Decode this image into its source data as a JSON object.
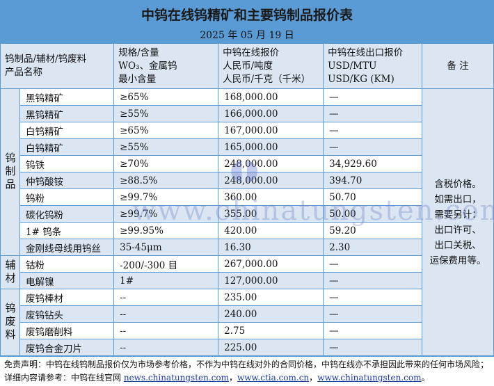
{
  "title": "中钨在线钨精矿和主要钨制品报价表",
  "date": "2025 年 05 月 19 日",
  "headers": {
    "name": [
      "钨制品/辅材/钨废料",
      "产品名称"
    ],
    "spec": [
      "规格/含量",
      "WO₃、金属钨",
      "最小含量"
    ],
    "price": [
      "中钨在线报价",
      "人民币/吨度",
      "人民币/千克（千米）"
    ],
    "export": [
      "中钨在线出口报价",
      "USD/MTU",
      "USD/KG (KM)"
    ],
    "remark": "备 注"
  },
  "categories": [
    "钨制品",
    "辅材",
    "钨废料"
  ],
  "rows": [
    {
      "name": "黑钨精矿",
      "spec": "≥65%",
      "price": "168,000.00",
      "export": "—"
    },
    {
      "name": "黑钨精矿",
      "spec": "≥55%",
      "price": "166,000.00",
      "export": "—"
    },
    {
      "name": "白钨精矿",
      "spec": "≥65%",
      "price": "167,000.00",
      "export": "—"
    },
    {
      "name": "白钨精矿",
      "spec": "≥55%",
      "price": "165,000.00",
      "export": "—"
    },
    {
      "name": "钨铁",
      "spec": "≥70%",
      "price": "248,000.00",
      "export": "34,929.60"
    },
    {
      "name": "仲钨酸铵",
      "spec": "≥88.5%",
      "price": "248,000.00",
      "export": "394.70"
    },
    {
      "name": "钨粉",
      "spec": "≥99.7%",
      "price": "360.00",
      "export": "50.70"
    },
    {
      "name": "碳化钨粉",
      "spec": "≥99.7%",
      "price": "355.00",
      "export": "50.00"
    },
    {
      "name": "1# 钨条",
      "spec": "≥99.95%",
      "price": "420.00",
      "export": "59.20"
    },
    {
      "name": "金刚线母线用钨丝",
      "spec": "35-45μm",
      "price": "16.30",
      "export": "2.30"
    },
    {
      "name": "钴粉",
      "spec": "-200/-300 目",
      "price": "267,000.00",
      "export": "—"
    },
    {
      "name": "电解镍",
      "spec": "1#",
      "price": "127,000.00",
      "export": "—"
    },
    {
      "name": "废钨棒材",
      "spec": "--",
      "price": "235.00",
      "export": "—"
    },
    {
      "name": "废钨钻头",
      "spec": "--",
      "price": "240.00",
      "export": "—"
    },
    {
      "name": "废钨磨削料",
      "spec": "--",
      "price": "2.75",
      "export": "—"
    },
    {
      "name": "废钨合金刀片",
      "spec": "--",
      "price": "225.00",
      "export": "—"
    }
  ],
  "remark_lines": [
    "含税价格。",
    "如需出口，",
    "需要另计：",
    "出口许可、",
    "出口关税、",
    "运保费用等。"
  ],
  "watermark": "www.chinatungsten.com",
  "logo_text": "CTOMS",
  "footer": {
    "disclaimer": "免责声明：中钨在线钨制品报价仅为市场参考价格，不作为中钨在线对外的合同价格，中钨在线亦不承担因此带来的任何市场风险；",
    "ref_label": "详细内容请参考：中钨在线官网",
    "links": [
      "news.chinatungsten.com",
      "www.ctia.com.cn",
      "www.chinatungsten.com"
    ]
  },
  "colors": {
    "header_bg": "#5b9bd5",
    "alt_row": "#dce6f2",
    "link": "#1a3aa0"
  }
}
